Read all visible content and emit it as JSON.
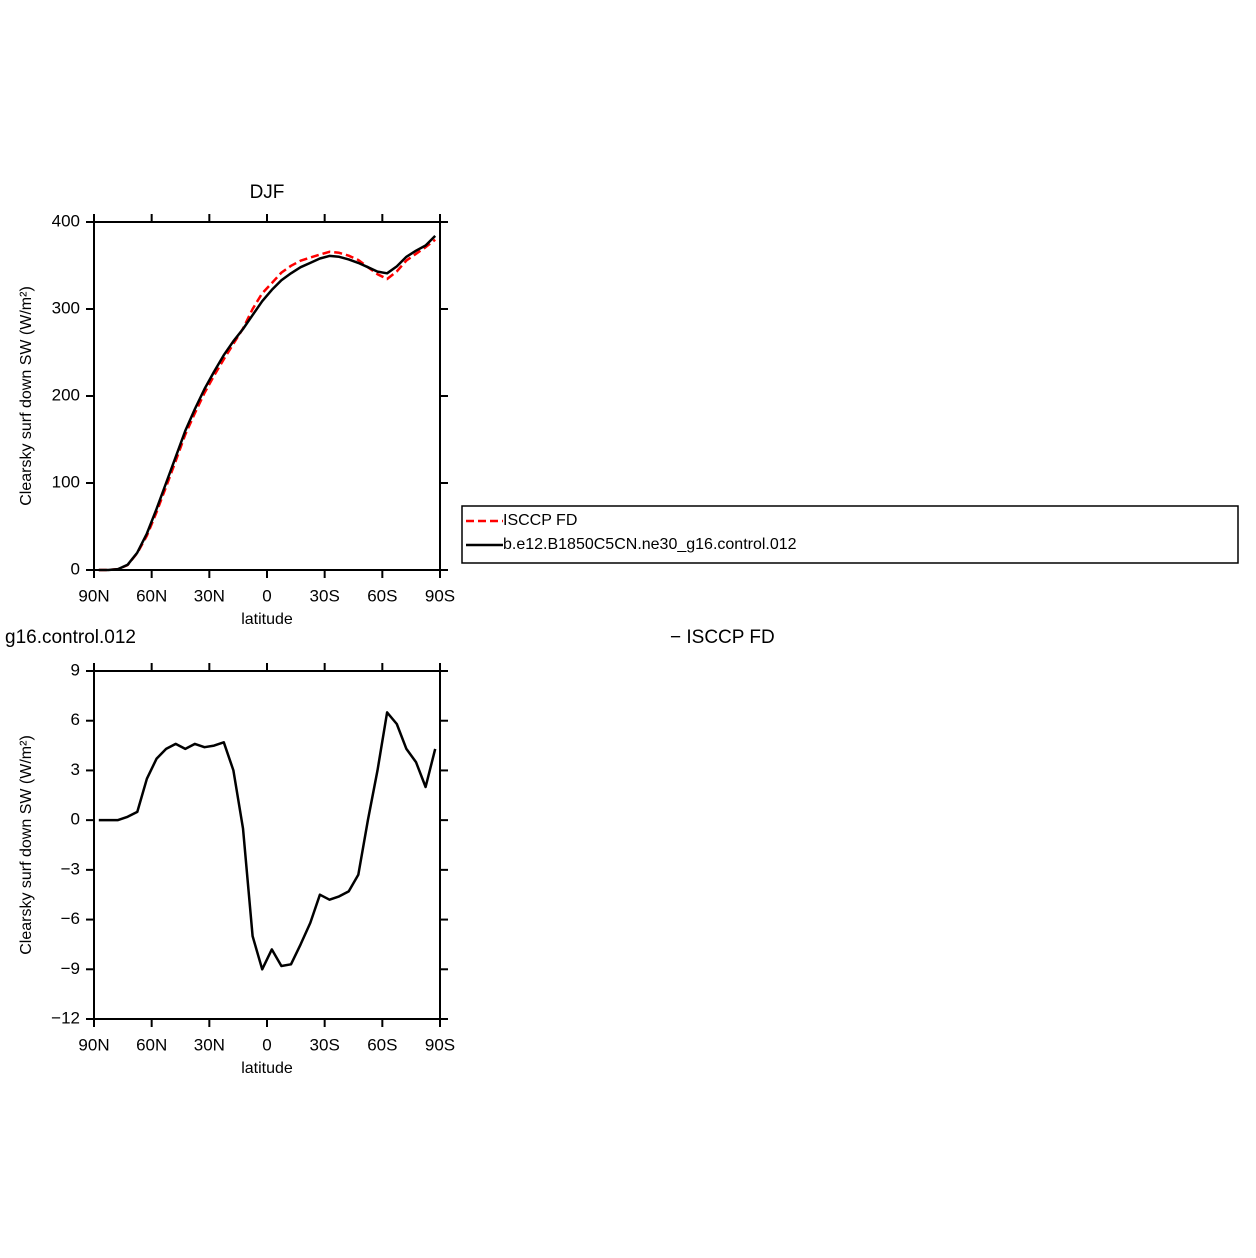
{
  "chart_data": [
    {
      "type": "line",
      "title": "DJF",
      "ylabel": "Clearsky surf down SW (W/m²)",
      "xlabel": "latitude",
      "x": [
        87.5,
        82.5,
        77.5,
        72.5,
        67.5,
        62.5,
        57.5,
        52.5,
        47.5,
        42.5,
        37.5,
        32.5,
        27.5,
        22.5,
        17.5,
        12.5,
        7.5,
        2.5,
        -2.5,
        -7.5,
        -12.5,
        -17.5,
        -22.5,
        -27.5,
        -32.5,
        -37.5,
        -42.5,
        -47.5,
        -52.5,
        -57.5,
        -62.5,
        -67.5,
        -72.5,
        -77.5,
        -82.5,
        -87.5
      ],
      "series": [
        {
          "name": "ISCCP FD",
          "color": "#ff0000",
          "dash": true,
          "values": [
            0,
            0,
            1,
            5.8,
            19.5,
            39.5,
            66.3,
            95.7,
            125.4,
            155.7,
            180.4,
            203.6,
            223.5,
            242.3,
            260,
            277.5,
            300,
            318,
            329.8,
            341.8,
            349.7,
            355.5,
            359.2,
            362.5,
            365.8,
            364.6,
            361.3,
            356.3,
            348,
            340,
            334.5,
            343.2,
            355.7,
            363.5,
            371,
            379.7
          ]
        },
        {
          "name": "b.e12.B1850C5CN.ne30_g16.control.012",
          "color": "#000000",
          "dash": false,
          "values": [
            0,
            0,
            1,
            6,
            20,
            42,
            70,
            100,
            130,
            160,
            185,
            208,
            228,
            247,
            263,
            277,
            293,
            309,
            322,
            333,
            341,
            348,
            353,
            358,
            361,
            360,
            357,
            353,
            348,
            343,
            341,
            349,
            360,
            367,
            373,
            384
          ]
        }
      ],
      "xlim": [
        90,
        -90
      ],
      "xticks": [
        {
          "value": 90,
          "label": "90N"
        },
        {
          "value": 60,
          "label": "60N"
        },
        {
          "value": 30,
          "label": "30N"
        },
        0,
        {
          "value": -30,
          "label": "30S"
        },
        {
          "value": -60,
          "label": "60S"
        },
        {
          "value": -90,
          "label": "90S"
        }
      ],
      "ylim": [
        0,
        400
      ],
      "yticks": [
        0,
        100,
        200,
        300,
        400
      ],
      "legend": "right"
    },
    {
      "type": "line",
      "title_parts": [
        "g16.control.012",
        "− ISCCP FD"
      ],
      "ylabel": "Clearsky surf down SW (W/m²)",
      "xlabel": "latitude",
      "x": [
        87.5,
        82.5,
        77.5,
        72.5,
        67.5,
        62.5,
        57.5,
        52.5,
        47.5,
        42.5,
        37.5,
        32.5,
        27.5,
        22.5,
        17.5,
        12.5,
        7.5,
        2.5,
        -2.5,
        -7.5,
        -12.5,
        -17.5,
        -22.5,
        -27.5,
        -32.5,
        -37.5,
        -42.5,
        -47.5,
        -52.5,
        -57.5,
        -62.5,
        -67.5,
        -72.5,
        -77.5,
        -82.5,
        -87.5
      ],
      "series": [
        {
          "name": null,
          "color": "#000000",
          "dash": false,
          "values": [
            0,
            0,
            0,
            0.2,
            0.5,
            2.5,
            3.7,
            4.3,
            4.6,
            4.3,
            4.6,
            4.4,
            4.5,
            4.7,
            3,
            -0.5,
            -7,
            -9,
            -7.8,
            -8.8,
            -8.7,
            -7.5,
            -6.2,
            -4.5,
            -4.8,
            -4.6,
            -4.3,
            -3.3,
            0,
            3,
            6.5,
            5.8,
            4.3,
            3.5,
            2,
            4.3
          ]
        }
      ],
      "xlim": [
        90,
        -90
      ],
      "xticks": [
        {
          "value": 90,
          "label": "90N"
        },
        {
          "value": 60,
          "label": "60N"
        },
        {
          "value": 30,
          "label": "30N"
        },
        0,
        {
          "value": -30,
          "label": "30S"
        },
        {
          "value": -60,
          "label": "60S"
        },
        {
          "value": -90,
          "label": "90S"
        }
      ],
      "ylim": [
        -12,
        9
      ],
      "yticks": [
        {
          "value": -12,
          "label": "−12"
        },
        {
          "value": -9,
          "label": "−9"
        },
        {
          "value": -6,
          "label": "−6"
        },
        {
          "value": -3,
          "label": "−3"
        },
        0,
        3,
        6,
        9
      ]
    }
  ]
}
